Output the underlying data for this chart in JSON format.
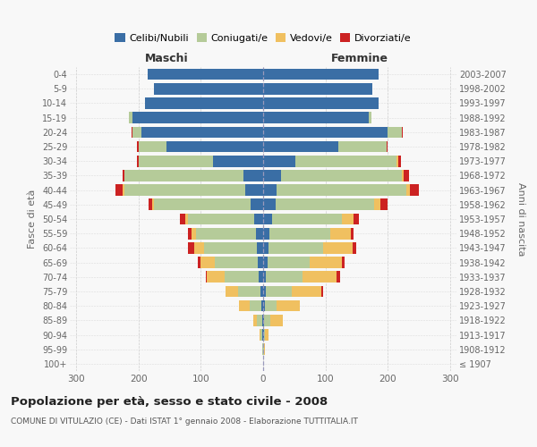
{
  "age_groups": [
    "100+",
    "95-99",
    "90-94",
    "85-89",
    "80-84",
    "75-79",
    "70-74",
    "65-69",
    "60-64",
    "55-59",
    "50-54",
    "45-49",
    "40-44",
    "35-39",
    "30-34",
    "25-29",
    "20-24",
    "15-19",
    "10-14",
    "5-9",
    "0-4"
  ],
  "birth_years": [
    "≤ 1907",
    "1908-1912",
    "1913-1917",
    "1918-1922",
    "1923-1927",
    "1928-1932",
    "1933-1937",
    "1938-1942",
    "1943-1947",
    "1948-1952",
    "1953-1957",
    "1958-1962",
    "1963-1967",
    "1968-1972",
    "1973-1977",
    "1978-1982",
    "1983-1987",
    "1988-1992",
    "1993-1997",
    "1998-2002",
    "2003-2007"
  ],
  "maschi_celibe": [
    0,
    0,
    1,
    2,
    3,
    5,
    7,
    8,
    10,
    12,
    15,
    20,
    28,
    32,
    80,
    155,
    195,
    210,
    190,
    175,
    185
  ],
  "maschi_coniugato": [
    0,
    1,
    4,
    8,
    18,
    35,
    55,
    70,
    85,
    95,
    105,
    155,
    195,
    190,
    120,
    45,
    15,
    5,
    0,
    0,
    0
  ],
  "maschi_vedovo": [
    0,
    0,
    1,
    6,
    18,
    20,
    28,
    22,
    15,
    8,
    5,
    3,
    2,
    1,
    0,
    0,
    0,
    0,
    0,
    0,
    0
  ],
  "maschi_divorziato": [
    0,
    0,
    0,
    0,
    0,
    0,
    2,
    5,
    10,
    5,
    8,
    5,
    12,
    3,
    2,
    3,
    1,
    0,
    0,
    0,
    0
  ],
  "femmine_nubile": [
    0,
    0,
    1,
    2,
    3,
    4,
    5,
    7,
    8,
    10,
    15,
    20,
    22,
    28,
    52,
    120,
    200,
    170,
    185,
    175,
    185
  ],
  "femmine_coniugata": [
    0,
    1,
    2,
    10,
    18,
    42,
    58,
    68,
    88,
    98,
    112,
    158,
    208,
    195,
    162,
    78,
    22,
    4,
    0,
    0,
    0
  ],
  "femmine_vedova": [
    0,
    2,
    5,
    20,
    38,
    48,
    55,
    52,
    48,
    32,
    18,
    10,
    5,
    3,
    2,
    0,
    0,
    0,
    0,
    0,
    0
  ],
  "femmine_divorziata": [
    0,
    0,
    0,
    0,
    0,
    2,
    5,
    3,
    5,
    5,
    8,
    12,
    15,
    8,
    5,
    2,
    2,
    0,
    0,
    0,
    0
  ],
  "colors": {
    "celibe": "#3a6ea5",
    "coniugato": "#b5cb99",
    "vedovo": "#f0c060",
    "divorziato": "#cc2222"
  },
  "xlim": 310,
  "title": "Popolazione per età, sesso e stato civile - 2008",
  "subtitle": "COMUNE DI VITULAZIO (CE) - Dati ISTAT 1° gennaio 2008 - Elaborazione TUTTITALIA.IT",
  "ylabel_left": "Fasce di età",
  "ylabel_right": "Anni di nascita",
  "legend_labels": [
    "Celibi/Nubili",
    "Coniugati/e",
    "Vedovi/e",
    "Divorziati/e"
  ],
  "bg_color": "#f8f8f8"
}
